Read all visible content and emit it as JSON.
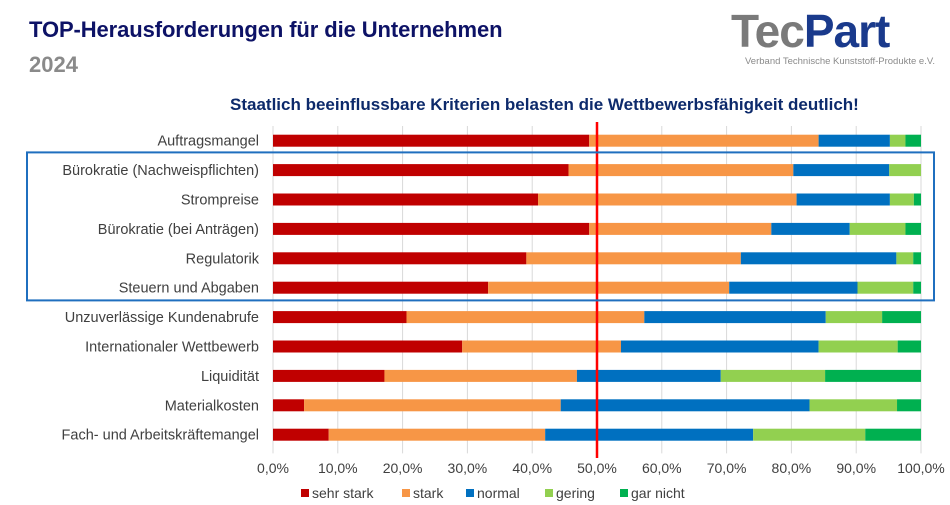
{
  "header": {
    "title": "TOP-Herausforderungen für die Unternehmen",
    "year": "2024",
    "subtitle": "Staatlich beeinflussbare Kriterien belasten die Wettbewerbsfähigkeit deutlich!"
  },
  "logo": {
    "part1": "Tec",
    "part2": "Part",
    "tagline": "Verband Technische Kunststoff-Produkte e.V."
  },
  "chart_data": {
    "type": "bar",
    "orientation": "horizontal",
    "stacked": "percent",
    "title": "Staatlich beeinflussbare Kriterien belasten die Wettbewerbsfähigkeit deutlich!",
    "xlabel": "",
    "ylabel": "",
    "xlim": [
      0,
      100
    ],
    "x_ticks": [
      "0,0%",
      "10,0%",
      "20,0%",
      "30,0%",
      "40,0%",
      "50,0%",
      "60,0%",
      "70,0%",
      "80,0%",
      "90,0%",
      "100,0%"
    ],
    "grid": true,
    "reference_line": {
      "value": 50,
      "color": "#ff0000"
    },
    "highlight_box": {
      "from_category": "Bürokratie (Nachweispflichten)",
      "to_category": "Steuern und Abgaben",
      "color": "#1f6fbf"
    },
    "legend_position": "bottom",
    "categories": [
      "Auftragsmangel",
      "Bürokratie (Nachweispflichten)",
      "Strompreise",
      "Bürokratie (bei Anträgen)",
      "Regulatorik",
      "Steuern und Abgaben",
      "Unzuverlässige Kundenabrufe",
      "Internationaler Wettbewerb",
      "Liquidität",
      "Materialkosten",
      "Fach- und Arbeitskräftemangel"
    ],
    "series": [
      {
        "name": "sehr stark",
        "color": "#c00000",
        "values": [
          48.8,
          45.6,
          40.9,
          48.8,
          39.1,
          33.2,
          20.6,
          29.2,
          17.2,
          4.8,
          8.6
        ]
      },
      {
        "name": "stark",
        "color": "#f79646",
        "values": [
          35.4,
          34.7,
          39.9,
          28.1,
          33.1,
          37.2,
          36.7,
          24.5,
          29.7,
          39.6,
          33.4
        ]
      },
      {
        "name": "normal",
        "color": "#0070c0",
        "values": [
          11.0,
          14.8,
          14.4,
          12.1,
          24.0,
          19.8,
          28.0,
          30.5,
          22.2,
          38.4,
          32.1
        ]
      },
      {
        "name": "gering",
        "color": "#92d050",
        "values": [
          2.4,
          4.9,
          3.7,
          8.6,
          2.6,
          8.6,
          8.7,
          12.2,
          16.1,
          13.5,
          17.3
        ]
      },
      {
        "name": "gar nicht",
        "color": "#00b050",
        "values": [
          2.4,
          0.0,
          1.1,
          2.4,
          1.2,
          1.2,
          6.0,
          3.6,
          14.8,
          3.7,
          8.6
        ]
      }
    ]
  }
}
